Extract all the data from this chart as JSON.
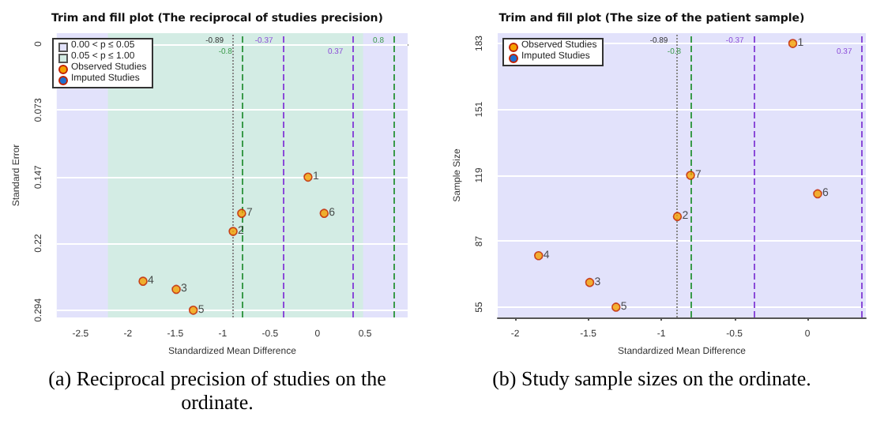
{
  "chart_data": [
    {
      "type": "scatter",
      "title": "Trim and fill plot (The reciprocal of studies precision)",
      "xlabel": "Standardized Mean Difference",
      "ylabel": "Standard Error",
      "x": [
        -0.1,
        -0.89,
        -1.49,
        -1.84,
        -1.31,
        0.07,
        -0.8
      ],
      "series": [
        {
          "name": "Observed Studies",
          "color": "#f5a000",
          "values": [
            0.147,
            0.207,
            0.271,
            0.262,
            0.294,
            0.187,
            0.187
          ]
        },
        {
          "name": "Imputed Studies",
          "color": "#1f6fd0",
          "values": [
            null,
            null,
            null,
            null,
            null,
            null,
            null
          ]
        }
      ],
      "bands": [
        {
          "axis": "x",
          "from": -2.75,
          "to": 0.95,
          "label": "0.00 < p ≤ 0.05",
          "color": "#e2e2fb"
        },
        {
          "axis": "x",
          "from": -2.21,
          "to": 0.48,
          "label": "0.05 < p ≤ 1.00",
          "color": "#d3ece4"
        }
      ],
      "ref_lines": [
        {
          "axis": "x",
          "value": -0.89,
          "label": "-0.89",
          "color": "#888888",
          "line_style": "dotted"
        },
        {
          "axis": "x",
          "value": -0.8,
          "label": "-0.8",
          "color": "#3a9a4a",
          "line_style": "dashed"
        },
        {
          "axis": "x",
          "value": -0.37,
          "label": "-0.37",
          "color": "#8a4ad8",
          "line_style": "dashed"
        },
        {
          "axis": "x",
          "value": 0.37,
          "label": "0.37",
          "color": "#8a4ad8",
          "line_style": "dashed"
        },
        {
          "axis": "x",
          "value": 0.8,
          "label": "0.8",
          "color": "#3a9a4a",
          "line_style": "dashed"
        }
      ],
      "xlim": [
        -2.75,
        0.95
      ],
      "xticks": [
        -2.5,
        -2,
        -1.5,
        -1,
        -0.5,
        0,
        0.5
      ],
      "ylim": [
        0.302,
        -0.012
      ],
      "yticks": [
        0,
        0.073,
        0.147,
        0.22,
        0.294
      ],
      "grid": "y",
      "legend": "top left",
      "marker": "circle",
      "annotations": [
        {
          "text": "1",
          "x": -0.1,
          "y": 0.147
        },
        {
          "text": "2",
          "x": -0.89,
          "y": 0.207
        },
        {
          "text": "3",
          "x": -1.49,
          "y": 0.271
        },
        {
          "text": "4",
          "x": -1.84,
          "y": 0.262
        },
        {
          "text": "5",
          "x": -1.31,
          "y": 0.294
        },
        {
          "text": "6",
          "x": 0.07,
          "y": 0.187
        },
        {
          "text": "7",
          "x": -0.8,
          "y": 0.187
        },
        "(a) Reciprocal precision of studies on the ordinate."
      ]
    },
    {
      "type": "scatter",
      "title": "Trim and fill plot (The size of the patient sample)",
      "xlabel": "Standardized Mean Difference",
      "ylabel": "Sample Size",
      "x": [
        -0.1,
        -0.89,
        -1.49,
        -1.84,
        -1.31,
        0.07,
        -0.8
      ],
      "series": [
        {
          "name": "Observed Studies",
          "color": "#f5a000",
          "values": [
            183,
            99,
            67,
            80,
            55,
            110,
            119
          ]
        },
        {
          "name": "Imputed Studies",
          "color": "#1f6fd0",
          "values": [
            null,
            null,
            null,
            null,
            null,
            null,
            null
          ]
        }
      ],
      "bands": [
        {
          "axis": "x",
          "from": -2.12,
          "to": 0.4,
          "label": null,
          "color": "#e2e2fb"
        }
      ],
      "ref_lines": [
        {
          "axis": "x",
          "value": -0.89,
          "label": "-0.89",
          "color": "#888888",
          "line_style": "dotted"
        },
        {
          "axis": "x",
          "value": -0.8,
          "label": "-0.8",
          "color": "#3a9a4a",
          "line_style": "dashed"
        },
        {
          "axis": "x",
          "value": -0.37,
          "label": "-0.37",
          "color": "#8a4ad8",
          "line_style": "dashed"
        },
        {
          "axis": "x",
          "value": 0.37,
          "label": "0.37",
          "color": "#8a4ad8",
          "line_style": "dashed"
        }
      ],
      "xlim": [
        -2.12,
        0.4
      ],
      "xticks": [
        -2,
        -1.5,
        -1,
        -0.5,
        0
      ],
      "ylim": [
        50,
        188
      ],
      "yticks": [
        55,
        87,
        119,
        151,
        183
      ],
      "grid": "y",
      "legend": "top left",
      "marker": "circle",
      "annotations": [
        {
          "text": "1",
          "x": -0.1,
          "y": 183
        },
        {
          "text": "2",
          "x": -0.89,
          "y": 99
        },
        {
          "text": "3",
          "x": -1.49,
          "y": 67
        },
        {
          "text": "4",
          "x": -1.84,
          "y": 80
        },
        {
          "text": "5",
          "x": -1.31,
          "y": 55
        },
        {
          "text": "6",
          "x": 0.07,
          "y": 110
        },
        {
          "text": "7",
          "x": -0.8,
          "y": 119
        },
        "(b) Study sample sizes on the ordinate."
      ]
    }
  ]
}
